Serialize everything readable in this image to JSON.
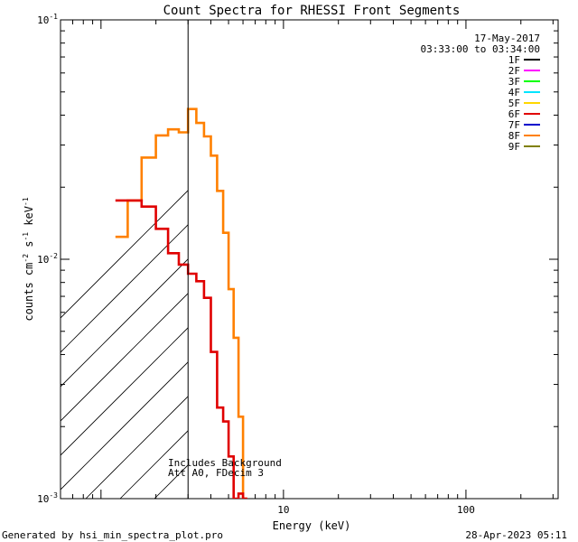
{
  "chart_data": {
    "type": "line",
    "title": "Count Spectra for RHESSI Front Segments",
    "xlabel": "Energy (keV)",
    "ylabel_parts": [
      "counts cm",
      "-2",
      " s",
      "-1",
      " keV",
      "-1"
    ],
    "x_scale": "log",
    "y_scale": "log",
    "xlim": [
      0.6,
      320
    ],
    "ylim": [
      0.001,
      0.1
    ],
    "x_tick_labels": [
      {
        "value": 10,
        "label": "10"
      },
      {
        "value": 100,
        "label": "100"
      }
    ],
    "y_tick_labels": [
      {
        "value": 0.1,
        "mantissa": "10",
        "exp": "-1"
      },
      {
        "value": 0.01,
        "mantissa": "10",
        "exp": "-2"
      },
      {
        "value": 0.001,
        "mantissa": "10",
        "exp": "-3"
      }
    ],
    "hatched_region": [
      0.6,
      3.0
    ],
    "grid": false,
    "legend_position": "top-right",
    "date": "17-May-2017",
    "time_range": "03:33:00 to 03:34:00",
    "legend": [
      {
        "name": "1F",
        "color": "#000000"
      },
      {
        "name": "2F",
        "color": "#ff00ff"
      },
      {
        "name": "3F",
        "color": "#00ff00"
      },
      {
        "name": "4F",
        "color": "#00e5ff"
      },
      {
        "name": "5F",
        "color": "#ffd700"
      },
      {
        "name": "6F",
        "color": "#e00000"
      },
      {
        "name": "7F",
        "color": "#0000cc"
      },
      {
        "name": "8F",
        "color": "#ff8000"
      },
      {
        "name": "9F",
        "color": "#808000"
      }
    ],
    "series": [
      {
        "name": "8F",
        "color": "#ff8000",
        "steps": [
          {
            "x0": 1.2,
            "x1": 1.4,
            "y": 0.0124
          },
          {
            "x0": 1.4,
            "x1": 1.67,
            "y": 0.0176
          },
          {
            "x0": 1.67,
            "x1": 2.0,
            "y": 0.0266
          },
          {
            "x0": 2.0,
            "x1": 2.33,
            "y": 0.0329
          },
          {
            "x0": 2.33,
            "x1": 2.67,
            "y": 0.0349
          },
          {
            "x0": 2.67,
            "x1": 3.0,
            "y": 0.0339
          },
          {
            "x0": 3.0,
            "x1": 3.33,
            "y": 0.0424
          },
          {
            "x0": 3.33,
            "x1": 3.67,
            "y": 0.0371
          },
          {
            "x0": 3.67,
            "x1": 4.0,
            "y": 0.0326
          },
          {
            "x0": 4.0,
            "x1": 4.33,
            "y": 0.0271
          },
          {
            "x0": 4.33,
            "x1": 4.67,
            "y": 0.0193
          },
          {
            "x0": 4.67,
            "x1": 5.0,
            "y": 0.0129
          },
          {
            "x0": 5.0,
            "x1": 5.33,
            "y": 0.0075
          },
          {
            "x0": 5.33,
            "x1": 5.67,
            "y": 0.0047
          },
          {
            "x0": 5.67,
            "x1": 6.0,
            "y": 0.0022
          },
          {
            "x0": 6.0,
            "x1": 6.33,
            "y": 0.001
          }
        ]
      },
      {
        "name": "6F",
        "color": "#e00000",
        "steps": [
          {
            "x0": 1.2,
            "x1": 1.67,
            "y": 0.0176
          },
          {
            "x0": 1.67,
            "x1": 2.0,
            "y": 0.0166
          },
          {
            "x0": 2.0,
            "x1": 2.33,
            "y": 0.0134
          },
          {
            "x0": 2.33,
            "x1": 2.67,
            "y": 0.0106
          },
          {
            "x0": 2.67,
            "x1": 3.0,
            "y": 0.0095
          },
          {
            "x0": 3.0,
            "x1": 3.33,
            "y": 0.0087
          },
          {
            "x0": 3.33,
            "x1": 3.67,
            "y": 0.0081
          },
          {
            "x0": 3.67,
            "x1": 4.0,
            "y": 0.0069
          },
          {
            "x0": 4.0,
            "x1": 4.33,
            "y": 0.0041
          },
          {
            "x0": 4.33,
            "x1": 4.67,
            "y": 0.0024
          },
          {
            "x0": 4.67,
            "x1": 5.0,
            "y": 0.0021
          },
          {
            "x0": 5.0,
            "x1": 5.33,
            "y": 0.0015
          },
          {
            "x0": 5.33,
            "x1": 5.67,
            "y": 0.001
          },
          {
            "x0": 5.67,
            "x1": 6.0,
            "y": 0.00105
          },
          {
            "x0": 6.0,
            "x1": 6.33,
            "y": 0.001
          }
        ]
      }
    ],
    "annotations": [
      "Includes Background",
      "Att A0, FDecim 3"
    ]
  },
  "footer": {
    "generated_by": "Generated by hsi_min_spectra_plot.pro",
    "timestamp": "28-Apr-2023 05:11"
  }
}
